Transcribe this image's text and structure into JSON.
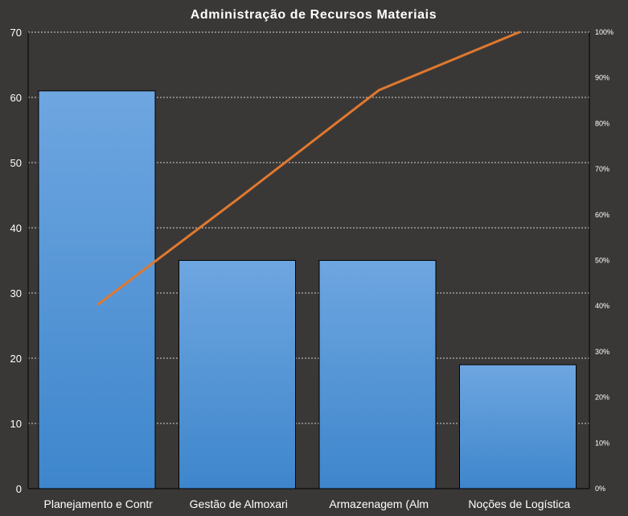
{
  "chart_data": {
    "type": "bar",
    "title": "Administração  de Recursos Materiais",
    "categories": [
      "Planejamento e Contr",
      "Gestão de Almoxari",
      "Armazenagem (Alm",
      "Noções de Logística"
    ],
    "series": [
      {
        "values": [
          61,
          35,
          35,
          19
        ],
        "type": "bar"
      },
      {
        "values": [
          40.4,
          63.6,
          87.3,
          100
        ],
        "type": "line",
        "axis": "secondary"
      }
    ],
    "ylim": [
      0,
      70
    ],
    "yticks": [
      "0",
      "10",
      "20",
      "30",
      "40",
      "50",
      "60",
      "70"
    ],
    "y2lim": [
      0,
      100
    ],
    "y2ticks": [
      "0%",
      "10%",
      "20%",
      "30%",
      "40%",
      "50%",
      "60%",
      "70%",
      "80%",
      "90%",
      "100%"
    ],
    "grid": true,
    "colors": {
      "background": "#3a3837",
      "bar_top": "#6ea6e0",
      "bar_bottom": "#3e86cc",
      "line": "#e0782e",
      "grid": "#d0d0d0",
      "text": "#ffffff"
    }
  }
}
